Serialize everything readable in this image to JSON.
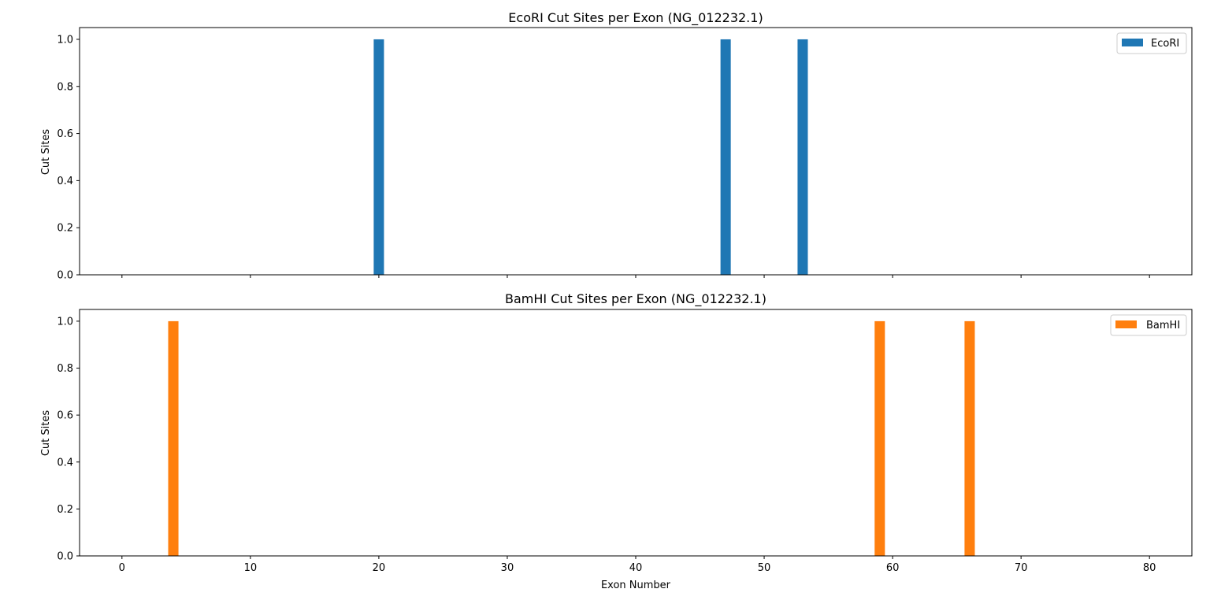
{
  "chart_data": [
    {
      "type": "bar",
      "title": "EcoRI Cut Sites per Exon (NG_012232.1)",
      "xlabel": "",
      "ylabel": "Cut Sites",
      "xlim": [
        -3.3,
        83.3
      ],
      "ylim": [
        0,
        1.05
      ],
      "xticks": [
        0,
        10,
        20,
        30,
        40,
        50,
        60,
        70,
        80
      ],
      "yticks": [
        "0.0",
        "0.2",
        "0.4",
        "0.6",
        "0.8",
        "1.0"
      ],
      "show_xtick_labels": false,
      "legend_position": "top-right",
      "bar_width": 0.8,
      "series": [
        {
          "name": "EcoRI",
          "color": "#1f77b4",
          "x": [
            20,
            47,
            53
          ],
          "values": [
            1,
            1,
            1
          ]
        }
      ]
    },
    {
      "type": "bar",
      "title": "BamHI Cut Sites per Exon (NG_012232.1)",
      "xlabel": "Exon Number",
      "ylabel": "Cut Sites",
      "xlim": [
        -3.3,
        83.3
      ],
      "ylim": [
        0,
        1.05
      ],
      "xticks": [
        0,
        10,
        20,
        30,
        40,
        50,
        60,
        70,
        80
      ],
      "yticks": [
        "0.0",
        "0.2",
        "0.4",
        "0.6",
        "0.8",
        "1.0"
      ],
      "show_xtick_labels": true,
      "legend_position": "top-right",
      "bar_width": 0.8,
      "series": [
        {
          "name": "BamHI",
          "color": "#ff7f0e",
          "x": [
            4,
            59,
            66
          ],
          "values": [
            1,
            1,
            1
          ]
        }
      ]
    }
  ]
}
